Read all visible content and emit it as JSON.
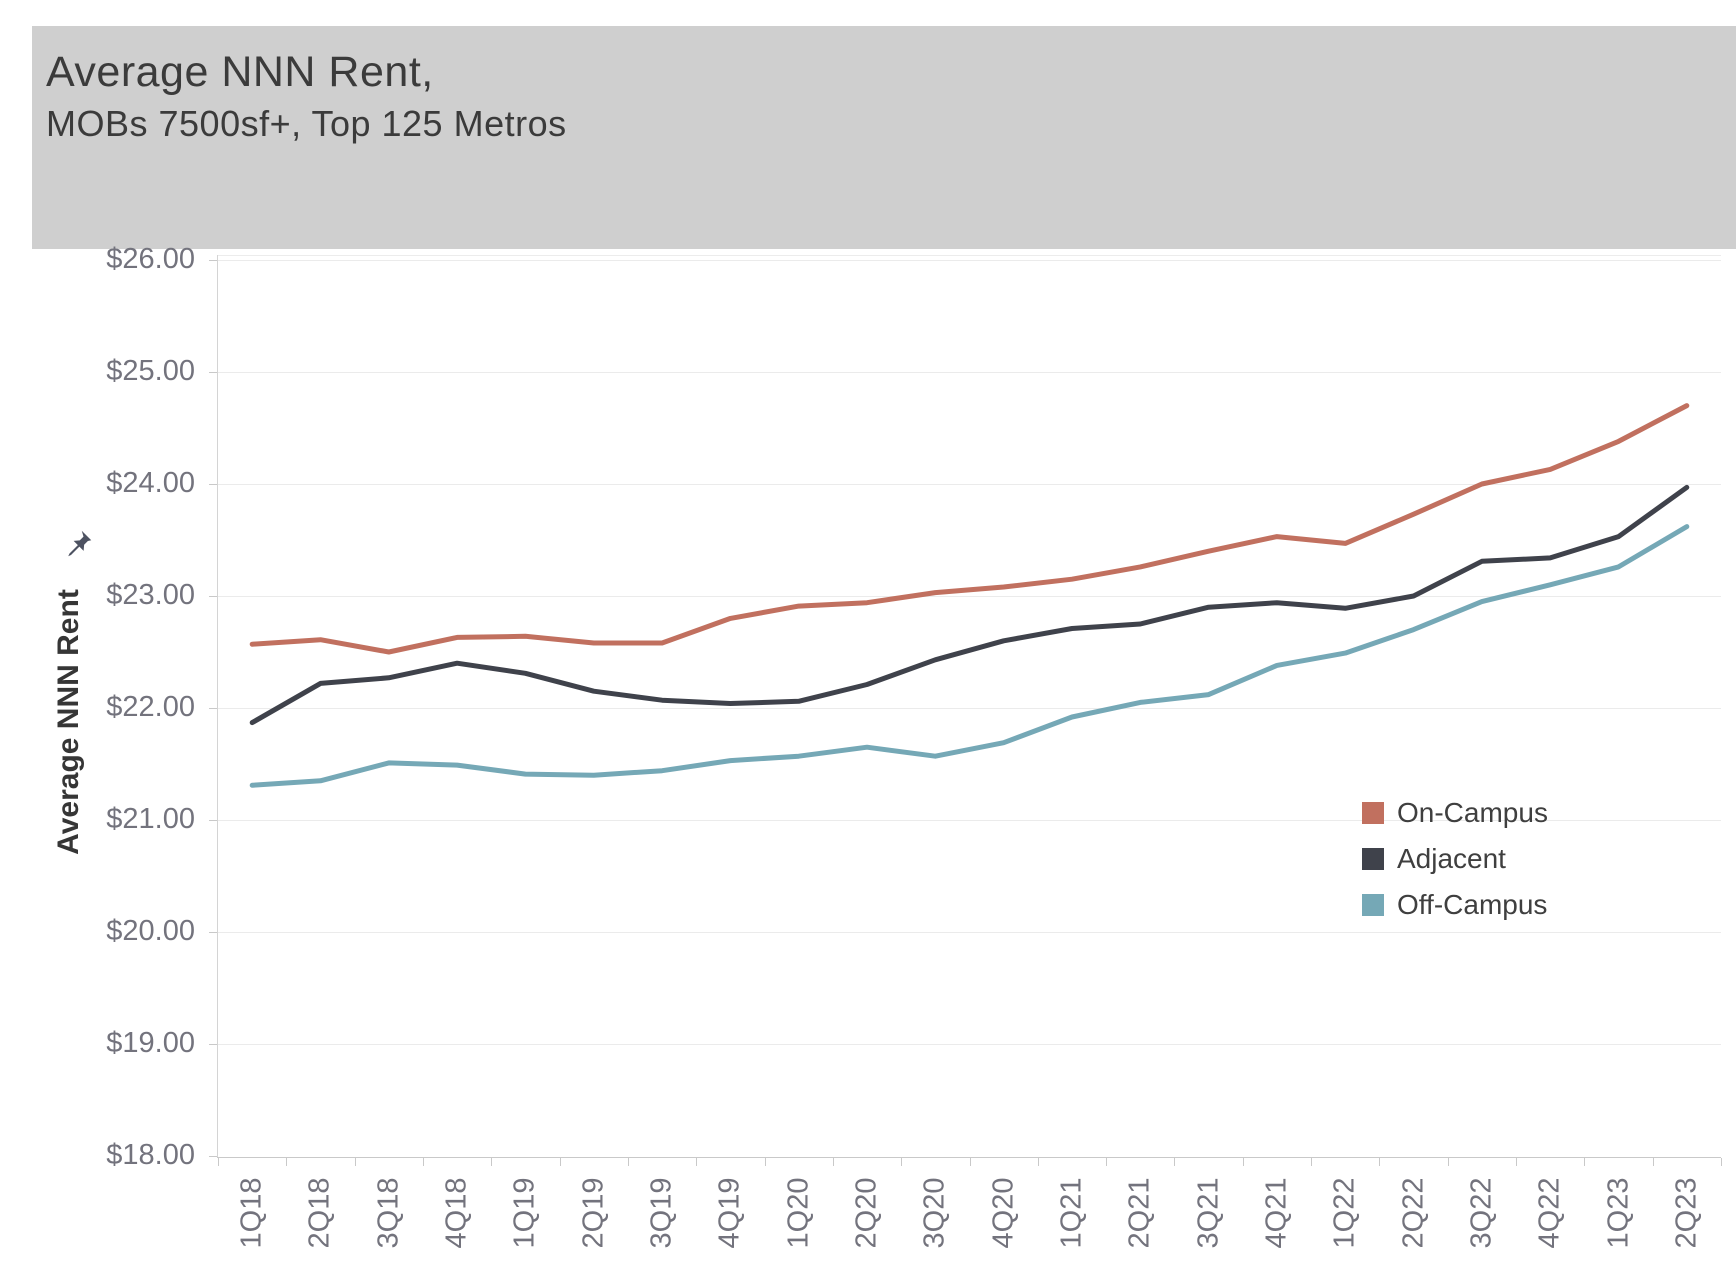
{
  "title": {
    "line1": "Average NNN Rent,",
    "line2": "MOBs 7500sf+, Top 125 Metros"
  },
  "y_axis": {
    "title": "Average NNN Rent",
    "tick_labels": [
      "$26.00",
      "$25.00",
      "$24.00",
      "$23.00",
      "$22.00",
      "$21.00",
      "$20.00",
      "$19.00",
      "$18.00"
    ]
  },
  "theme": {
    "banner_bg": "#cfcfcf",
    "title_text": "#3b3b3b",
    "axis_text": "#73737d",
    "grid_color": "#ebebeb",
    "axis_line": "#c9c9c9"
  },
  "chart_data": {
    "type": "line",
    "title": "Average NNN Rent, MOBs 7500sf+, Top 125 Metros",
    "ylabel": "Average NNN Rent",
    "ylim": [
      18,
      26
    ],
    "ytick_step": 1,
    "ytick_format": "$#.00",
    "grid": true,
    "legend_position": "inside-right",
    "categories": [
      "1Q18",
      "2Q18",
      "3Q18",
      "4Q18",
      "1Q19",
      "2Q19",
      "3Q19",
      "4Q19",
      "1Q20",
      "2Q20",
      "3Q20",
      "4Q20",
      "1Q21",
      "2Q21",
      "3Q21",
      "4Q21",
      "1Q22",
      "2Q22",
      "3Q22",
      "4Q22",
      "1Q23",
      "2Q23"
    ],
    "series": [
      {
        "name": "On-Campus",
        "color": "#c1705f",
        "values": [
          22.57,
          22.61,
          22.5,
          22.63,
          22.64,
          22.58,
          22.58,
          22.8,
          22.91,
          22.94,
          23.03,
          23.08,
          23.15,
          23.26,
          23.4,
          23.53,
          23.47,
          23.73,
          24.0,
          24.13,
          24.38,
          24.7
        ]
      },
      {
        "name": "Adjacent",
        "color": "#3f424b",
        "values": [
          21.87,
          22.22,
          22.27,
          22.4,
          22.31,
          22.15,
          22.07,
          22.04,
          22.06,
          22.21,
          22.43,
          22.6,
          22.71,
          22.75,
          22.9,
          22.94,
          22.89,
          23.0,
          23.31,
          23.34,
          23.53,
          23.97
        ]
      },
      {
        "name": "Off-Campus",
        "color": "#75a8b6",
        "values": [
          21.31,
          21.35,
          21.51,
          21.49,
          21.41,
          21.4,
          21.44,
          21.53,
          21.57,
          21.65,
          21.57,
          21.69,
          21.92,
          22.05,
          22.12,
          22.38,
          22.49,
          22.7,
          22.95,
          23.1,
          23.26,
          23.62
        ]
      }
    ]
  }
}
